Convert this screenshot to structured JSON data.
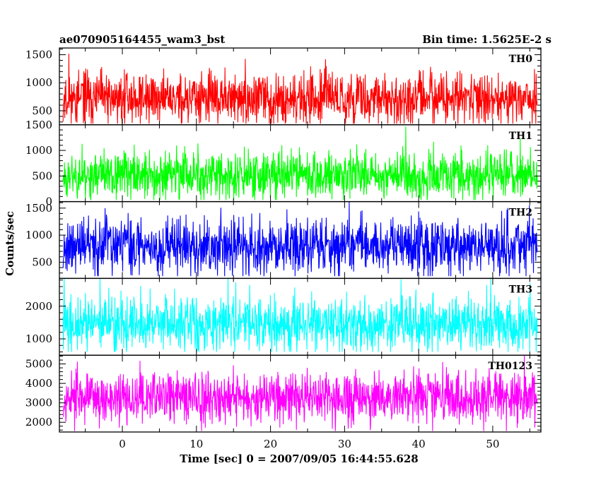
{
  "header": {
    "title": "ae070905164455_wam3_bst",
    "bin_time": "Bin time: 1.5625E-2 s"
  },
  "chart_data": {
    "type": "line",
    "xlabel": "Time [sec] 0 = 2007/09/05 16:44:55.628",
    "ylabel": "Counts/sec",
    "xlim": [
      -8.5,
      56.5
    ],
    "x_data_range": [
      -8,
      56
    ],
    "x_ticks": [
      0,
      10,
      20,
      30,
      40,
      50
    ],
    "panels": [
      {
        "name": "TH0",
        "color": "#ff0000",
        "ylim": [
          250,
          1620
        ],
        "y_ticks": [
          500,
          1000,
          1500
        ],
        "mean": 720,
        "spread": 230,
        "min_val": 270,
        "max_val": 1620,
        "seed": 11
      },
      {
        "name": "TH1",
        "color": "#00ff00",
        "ylim": [
          0,
          1500
        ],
        "y_ticks": [
          0,
          500,
          1000,
          1500
        ],
        "mean": 520,
        "spread": 230,
        "min_val": 30,
        "max_val": 1500,
        "seed": 23
      },
      {
        "name": "TH2",
        "color": "#0000ff",
        "ylim": [
          200,
          1620
        ],
        "y_ticks": [
          500,
          1000,
          1500
        ],
        "mean": 800,
        "spread": 260,
        "min_val": 240,
        "max_val": 1620,
        "seed": 37
      },
      {
        "name": "TH3",
        "color": "#00ffff",
        "ylim": [
          500,
          2850
        ],
        "y_ticks": [
          1000,
          2000
        ],
        "mean": 1450,
        "spread": 400,
        "min_val": 600,
        "max_val": 2850,
        "seed": 41
      },
      {
        "name": "TH0123",
        "color": "#ff00ff",
        "ylim": [
          1500,
          5450
        ],
        "y_ticks": [
          2000,
          3000,
          4000,
          5000
        ],
        "mean": 3300,
        "spread": 650,
        "min_val": 1550,
        "max_val": 5450,
        "seed": 53
      }
    ]
  }
}
